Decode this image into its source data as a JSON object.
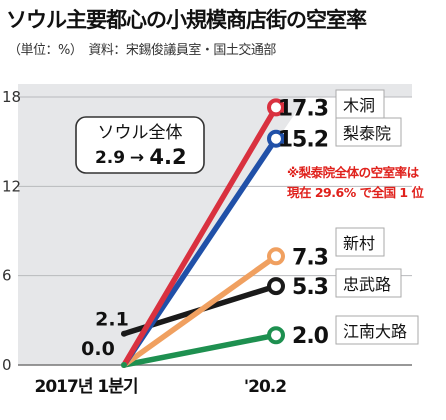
{
  "title": "ソウル主要都心の小規模商店街の空室率",
  "subtitle": "（単位：%）　資料：宋錫俊議員室・国土交通部",
  "chart_data": {
    "type": "line",
    "title": "ソウル主要都心の小規模商店街の空室率",
    "unit_note": "（単位：%）",
    "source": "資料：宋錫俊議員室・国土交通部",
    "categories": [
      "2017년 1분기",
      "'20.2"
    ],
    "yticks": [
      0,
      6,
      12,
      18
    ],
    "ylim": [
      0,
      18
    ],
    "grid": true,
    "series": [
      {
        "name": "木洞",
        "values": [
          0.0,
          17.3
        ],
        "color": "#d9313f",
        "label": "17.3"
      },
      {
        "name": "梨泰院",
        "values": [
          0.0,
          15.2
        ],
        "color": "#2050a8",
        "label": "15.2"
      },
      {
        "name": "新村",
        "values": [
          0.0,
          7.3
        ],
        "color": "#f0a060",
        "label": "7.3"
      },
      {
        "name": "忠武路",
        "values": [
          2.1,
          5.3
        ],
        "color": "#1a1a1a",
        "label": "5.3"
      },
      {
        "name": "江南大路",
        "values": [
          0.0,
          2.0
        ],
        "color": "#1e9050",
        "label": "2.0"
      }
    ],
    "start_labels": [
      "2.1",
      "0.0"
    ],
    "callout_box": {
      "title": "ソウル全体",
      "from": "2.9",
      "to": "4.2"
    },
    "annotation": [
      "※梨泰院全体の空室率は",
      "現在 29.6% で全国 1 位"
    ],
    "annotation_color": "#e0211c"
  }
}
